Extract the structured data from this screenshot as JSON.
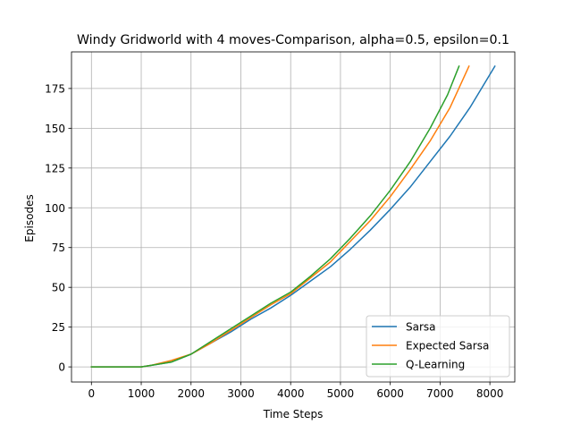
{
  "chart_data": {
    "type": "line",
    "title": "Windy Gridworld with 4 moves-Comparison, alpha=0.5, epsilon=0.1",
    "xlabel": "Time Steps",
    "ylabel": "Episodes",
    "xlim": [
      -400,
      8500
    ],
    "ylim": [
      -9.5,
      198
    ],
    "xticks": [
      0,
      1000,
      2000,
      3000,
      4000,
      5000,
      6000,
      7000,
      8000
    ],
    "xtick_labels": [
      "0",
      "1000",
      "2000",
      "3000",
      "4000",
      "5000",
      "6000",
      "7000",
      "8000"
    ],
    "yticks": [
      0,
      25,
      50,
      75,
      100,
      125,
      150,
      175
    ],
    "ytick_labels": [
      "0",
      "25",
      "50",
      "75",
      "100",
      "125",
      "150",
      "175"
    ],
    "grid": true,
    "legend_position": "lower right",
    "series": [
      {
        "name": "Sarsa",
        "color": "#1f77b4",
        "x": [
          0,
          1000,
          1200,
          1600,
          2000,
          2400,
          2800,
          3200,
          3600,
          4000,
          4400,
          4800,
          5200,
          5600,
          6000,
          6400,
          6800,
          7200,
          7600,
          8100
        ],
        "y": [
          0,
          0,
          1,
          3,
          8,
          15,
          22,
          30,
          37,
          45,
          54,
          63,
          74,
          86,
          99,
          113,
          129,
          145,
          163,
          189
        ]
      },
      {
        "name": "Expected Sarsa",
        "color": "#ff7f0e",
        "x": [
          0,
          1000,
          1200,
          1600,
          2000,
          2400,
          2800,
          3200,
          3600,
          4000,
          4400,
          4800,
          5200,
          5600,
          6000,
          6400,
          6800,
          7200,
          7580
        ],
        "y": [
          0,
          0,
          1,
          4,
          8,
          15,
          23,
          31,
          39,
          46,
          56,
          66,
          79,
          92,
          107,
          124,
          142,
          163,
          189
        ]
      },
      {
        "name": "Q-Learning",
        "color": "#2ca02c",
        "x": [
          0,
          1000,
          1200,
          1600,
          2000,
          2400,
          2800,
          3200,
          3600,
          4000,
          4400,
          4800,
          5200,
          5600,
          6000,
          6400,
          6800,
          7150,
          7380
        ],
        "y": [
          0,
          0,
          1,
          3,
          8,
          16,
          24,
          32,
          40,
          47,
          57,
          68,
          81,
          95,
          111,
          129,
          150,
          171,
          189
        ]
      }
    ]
  }
}
